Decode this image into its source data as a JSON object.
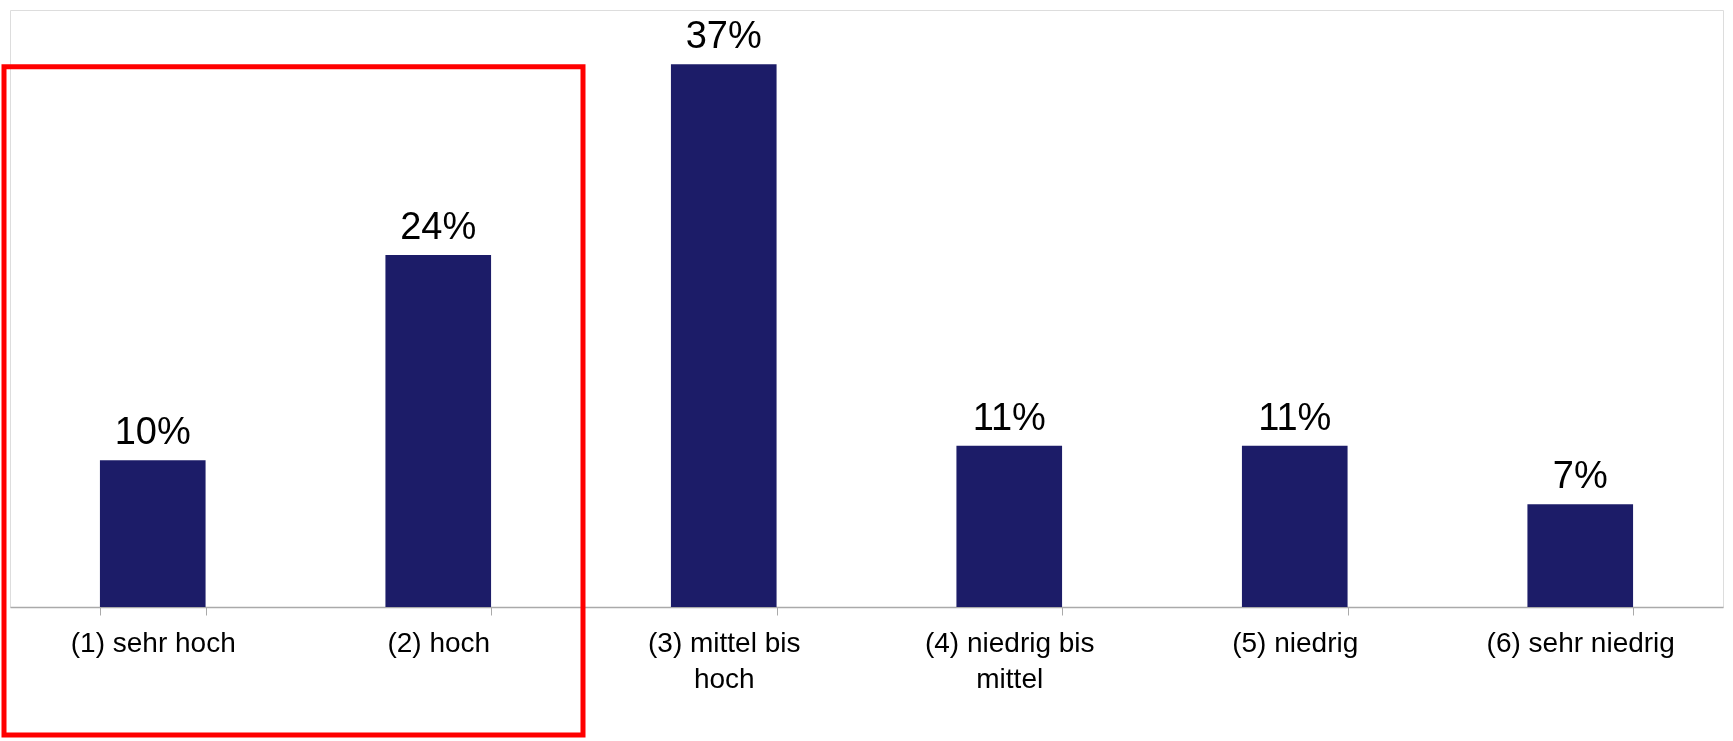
{
  "chart_data": {
    "type": "bar",
    "categories": [
      "(1) sehr hoch",
      "(2) hoch",
      "(3) mittel bis hoch",
      "(4) niedrig bis mittel",
      "(5) niedrig",
      "(6) sehr niedrig"
    ],
    "values": [
      10,
      24,
      37,
      11,
      11,
      7
    ],
    "value_labels": [
      "10%",
      "24%",
      "37%",
      "11%",
      "11%",
      "7%"
    ],
    "color": "#1c1c68",
    "grid": false,
    "tick_labels": "x"
  }
}
